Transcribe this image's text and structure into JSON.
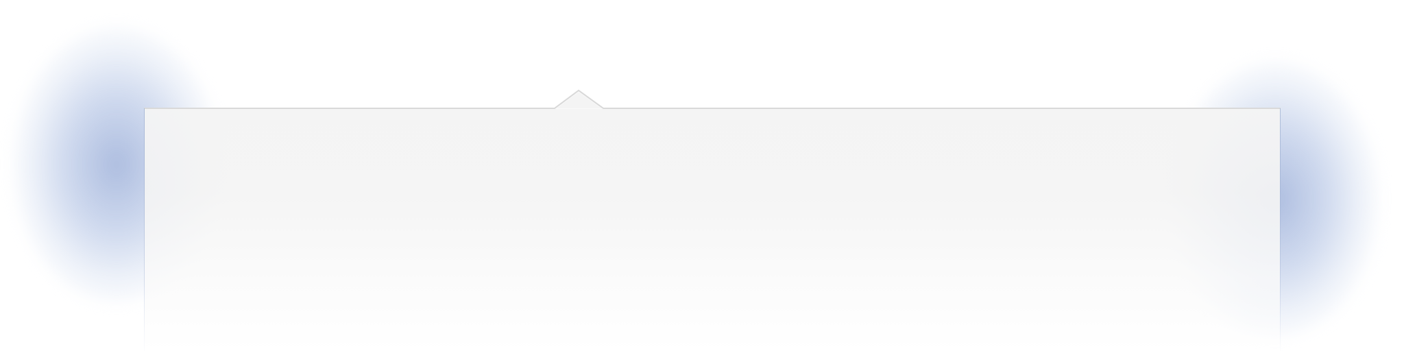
{
  "popover": {
    "role": "callout",
    "arrow": "top",
    "background_color": "#f4f4f4",
    "border_color": "#d8d8d8",
    "side_border_color": "#a9b8d6"
  },
  "glow": {
    "color": "#7f9ccf"
  }
}
